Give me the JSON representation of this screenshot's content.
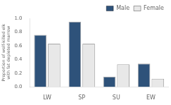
{
  "chart_data": {
    "type": "bar",
    "categories": [
      "LW",
      "SP",
      "SU",
      "EW"
    ],
    "series": [
      {
        "name": "Male",
        "color": "#2E527A",
        "values": [
          0.76,
          0.95,
          0.15,
          0.34
        ]
      },
      {
        "name": "Female",
        "color": "#E8E8E8",
        "values": [
          0.63,
          0.63,
          0.33,
          0.12
        ]
      }
    ],
    "ylabel": "Proportion of wolf-killed elk\nwith fat depleted marrow",
    "ylim": [
      0.0,
      1.0
    ],
    "yticks": [
      {
        "value": 0,
        "label": "0.0"
      },
      0.2,
      0.4,
      0.6,
      0.8,
      {
        "value": 1,
        "label": "1.0"
      }
    ],
    "grid": false,
    "legend": "upper right"
  }
}
